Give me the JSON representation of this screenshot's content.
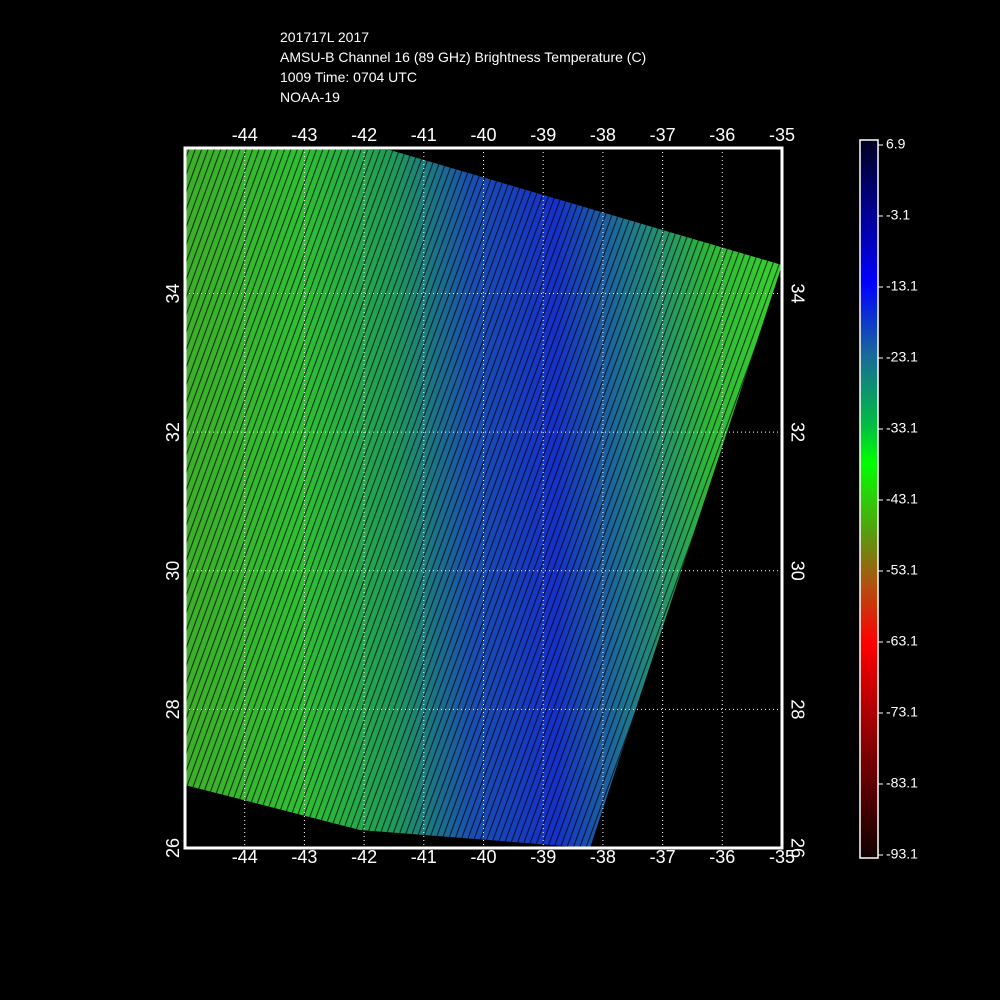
{
  "title": [
    "201717L 2017",
    "AMSU-B Channel 16 (89 GHz) Brightness Temperature (C)",
    "1009 Time: 0704 UTC",
    "NOAA-19"
  ],
  "map": {
    "xlim": [
      -45,
      -35
    ],
    "ylim": [
      26,
      36.1
    ],
    "xticks": [
      -44,
      -43,
      -42,
      -41,
      -40,
      -39,
      -38,
      -37,
      -36,
      -35
    ],
    "yticks": [
      26,
      28,
      30,
      32,
      34
    ]
  },
  "colorbar": {
    "range": [
      -93.1,
      6.9
    ],
    "ticks": [
      6.9,
      -3.1,
      -13.1,
      -23.1,
      -33.1,
      -43.1,
      -53.1,
      -63.1,
      -73.1,
      -83.1,
      -93.1
    ]
  }
}
